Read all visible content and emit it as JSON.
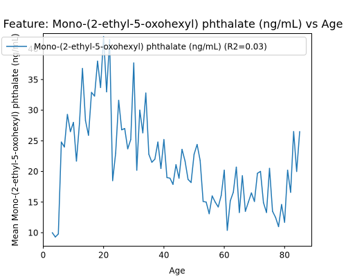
{
  "chart_data": {
    "type": "line",
    "title": "Feature: Mono-(2-ethyl-5-oxohexyl) phthalate (ng/mL) vs Age",
    "xlabel": "Age",
    "ylabel": "Mean Mono-(2-ethyl-5-oxohexyl) phthalate (ng/mL)",
    "xlim": [
      0,
      89
    ],
    "ylim": [
      7.8,
      42.5
    ],
    "xticks": [
      0,
      20,
      40,
      60,
      80
    ],
    "yticks": [
      10,
      15,
      20,
      25,
      30,
      35,
      40
    ],
    "legend_position": "top-left",
    "grid": false,
    "series": [
      {
        "name": "Mono-(2-ethyl-5-oxohexyl) phthalate (ng/mL) (R2=0.03)",
        "color": "#1f77b4",
        "x": [
          3,
          4,
          5,
          6,
          7,
          8,
          9,
          10,
          11,
          12,
          13,
          14,
          15,
          16,
          17,
          18,
          19,
          20,
          21,
          22,
          23,
          24,
          25,
          26,
          27,
          28,
          29,
          30,
          31,
          32,
          33,
          34,
          35,
          36,
          37,
          38,
          39,
          40,
          41,
          42,
          43,
          44,
          45,
          46,
          47,
          48,
          49,
          50,
          51,
          52,
          53,
          54,
          55,
          56,
          57,
          58,
          59,
          60,
          61,
          62,
          63,
          64,
          65,
          66,
          67,
          68,
          69,
          70,
          71,
          72,
          73,
          74,
          75,
          76,
          77,
          78,
          79,
          80,
          81,
          82,
          83,
          84,
          85
        ],
        "y": [
          10.0,
          9.3,
          9.8,
          24.8,
          24.0,
          29.3,
          26.5,
          28.0,
          21.7,
          27.8,
          36.8,
          28.3,
          25.9,
          32.9,
          32.3,
          38.0,
          33.7,
          42.0,
          33.0,
          41.5,
          18.5,
          23.0,
          31.6,
          26.8,
          27.0,
          23.7,
          25.2,
          37.7,
          20.2,
          30.0,
          26.3,
          32.8,
          22.8,
          21.5,
          22.0,
          24.8,
          20.5,
          25.2,
          19.0,
          18.9,
          17.9,
          21.1,
          18.9,
          23.6,
          21.7,
          18.7,
          18.2,
          22.8,
          24.4,
          21.8,
          15.1,
          15.0,
          13.1,
          16.0,
          15.0,
          14.2,
          16.1,
          20.2,
          10.4,
          15.2,
          16.6,
          20.7,
          13.3,
          19.3,
          13.5,
          15.0,
          16.5,
          15.1,
          19.7,
          20.0,
          14.9,
          13.3,
          20.5,
          13.5,
          12.5,
          11.0,
          14.6,
          11.7,
          20.2,
          16.6,
          26.5,
          20.0,
          26.5
        ]
      }
    ]
  }
}
